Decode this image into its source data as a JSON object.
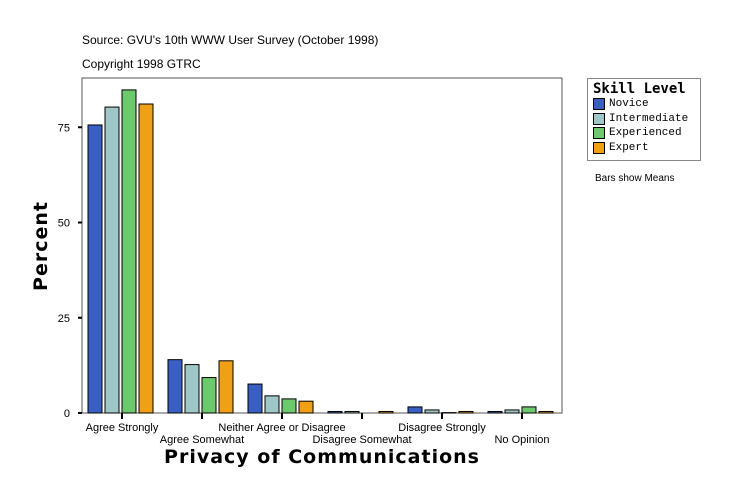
{
  "header": {
    "source": "Source: GVU's 10th WWW User Survey (October 1998)",
    "copyright": "Copyright 1998 GTRC"
  },
  "note": "Bars show Means",
  "chart_data": {
    "type": "bar",
    "xlabel": "Privacy of Communications",
    "ylabel": "Percent",
    "ylim": [
      0,
      88
    ],
    "yticks": [
      "0",
      "25",
      "50",
      "75"
    ],
    "grid": false,
    "legend_title": "Skill Level",
    "legend_position": "right",
    "categories": [
      "Agree Strongly",
      "Agree Somewhat",
      "Neither Agree or Disagree",
      "Disagree Somewhat",
      "Disagree Strongly",
      "No Opinion"
    ],
    "series": [
      {
        "name": "Novice",
        "color": "#3a5fc4",
        "values": [
          75.6,
          14.0,
          7.6,
          0.4,
          1.6,
          0.4
        ]
      },
      {
        "name": "Intermediate",
        "color": "#9fc7c7",
        "values": [
          80.3,
          12.7,
          4.5,
          0.4,
          0.8,
          0.8
        ]
      },
      {
        "name": "Experienced",
        "color": "#6cc96c",
        "values": [
          84.8,
          9.3,
          3.7,
          0.0,
          0.1,
          1.6
        ]
      },
      {
        "name": "Expert",
        "color": "#f0a015",
        "values": [
          81.1,
          13.7,
          3.1,
          0.4,
          0.4,
          0.4
        ]
      }
    ]
  }
}
